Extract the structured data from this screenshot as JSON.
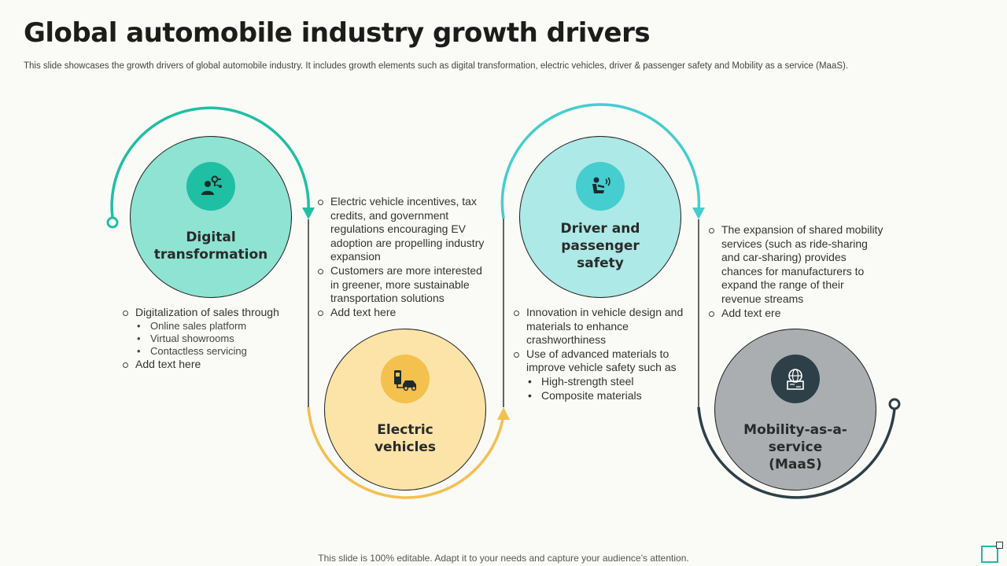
{
  "title": "Global automobile industry growth drivers",
  "subtitle": "This slide showcases the growth drivers of global automobile industry. It includes growth elements such as digital transformation, electric vehicles, driver & passenger safety and Mobility as a service (MaaS).",
  "colors": {
    "teal": "#1fbfa3",
    "teal_fill": "#8ee3d2",
    "amber": "#f4c04e",
    "amber_fill": "#fce3a8",
    "cyan": "#45cdd0",
    "cyan_fill": "#ade9e6",
    "slate": "#2d3f47",
    "gray_fill": "#aaaeb0"
  },
  "drivers": [
    {
      "label": "Digital transformation",
      "icon": "digital-person-icon",
      "points": [
        {
          "text": "Digitalization of sales through",
          "sub": [
            "Online sales  platform",
            "Virtual showrooms",
            "Contactless servicing"
          ]
        },
        {
          "text": "Add text here",
          "sub": []
        }
      ]
    },
    {
      "label": "Electric vehicles",
      "icon": "ev-charger-icon",
      "points": [
        {
          "text": "Electric vehicle incentives, tax credits, and government regulations encouraging EV adoption are propelling industry expansion",
          "sub": []
        },
        {
          "text": "Customers are more interested in greener, more sustainable transportation solutions",
          "sub": []
        },
        {
          "text": "Add text here",
          "sub": []
        }
      ]
    },
    {
      "label": "Driver and passenger safety",
      "icon": "driver-seat-icon",
      "points": [
        {
          "text": "Innovation  in vehicle design and materials to enhance crashworthiness",
          "sub": []
        },
        {
          "text": "Use of advanced materials to improve vehicle safety such as",
          "sub": [
            "High-strength steel",
            "Composite materials"
          ]
        }
      ]
    },
    {
      "label": "Mobility-as-a-service (MaaS)",
      "icon": "globe-map-icon",
      "points": [
        {
          "text": "The expansion of shared mobility services (such as ride-sharing and car-sharing) provides chances for manufacturers to expand the range of their revenue streams",
          "sub": []
        },
        {
          "text": "Add text ere",
          "sub": []
        }
      ]
    }
  ],
  "footer": "This slide is 100% editable. Adapt it to your needs and capture your audience’s attention."
}
